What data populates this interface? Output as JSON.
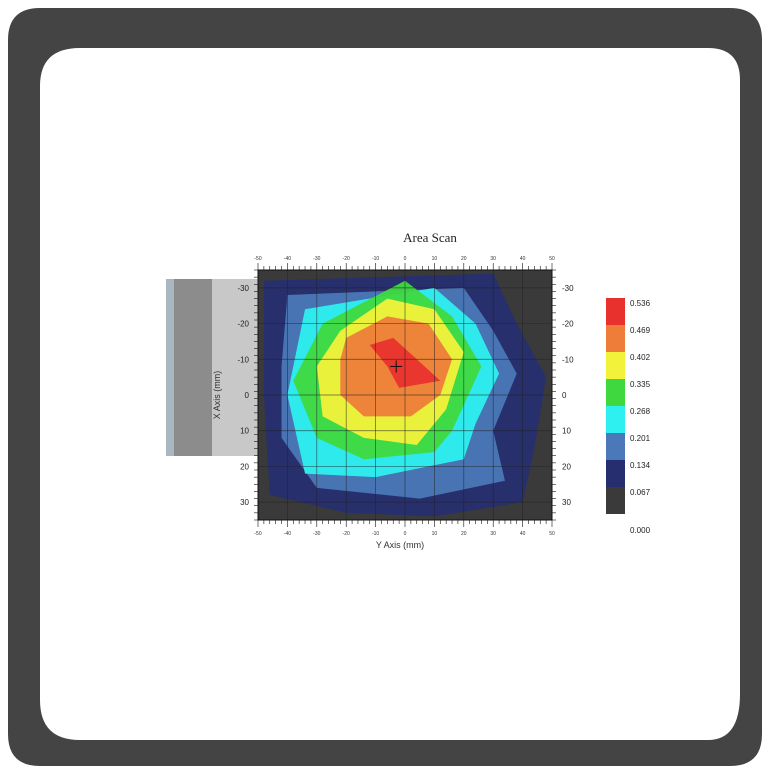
{
  "chart_data": {
    "type": "heatmap",
    "title": "Area Scan",
    "xlabel": "Y Axis (mm)",
    "ylabel": "X Axis (mm)",
    "x_range": [
      -50,
      50
    ],
    "y_range": [
      -35,
      35
    ],
    "x_ticks": [
      "-50",
      "-40",
      "-30",
      "-20",
      "-10",
      "0",
      "10",
      "20",
      "30",
      "40",
      "50"
    ],
    "y_ticks_left": [
      "-30",
      "-20",
      "-10",
      "0",
      "10",
      "20",
      "30"
    ],
    "y_ticks_right": [
      "-30",
      "-20",
      "-10",
      "0",
      "10",
      "20",
      "30"
    ],
    "grid": true,
    "legend_placement": "right",
    "colorbar": [
      {
        "value": "0.536",
        "color": "#e8312d"
      },
      {
        "value": "0.469",
        "color": "#ee7d3a"
      },
      {
        "value": "0.402",
        "color": "#f2f23a"
      },
      {
        "value": "0.335",
        "color": "#3fd93f"
      },
      {
        "value": "0.268",
        "color": "#2ef0f0"
      },
      {
        "value": "0.201",
        "color": "#4a78b8"
      },
      {
        "value": "0.134",
        "color": "#262e70"
      },
      {
        "value": "0.067",
        "color": "#3a3a3a"
      }
    ],
    "colorbar_min": "0.000",
    "peak": {
      "x": -3,
      "y": -8
    }
  },
  "colors": {
    "frame": "#444444",
    "background": "#ffffff",
    "plot_bg": "#3a3a3a"
  }
}
